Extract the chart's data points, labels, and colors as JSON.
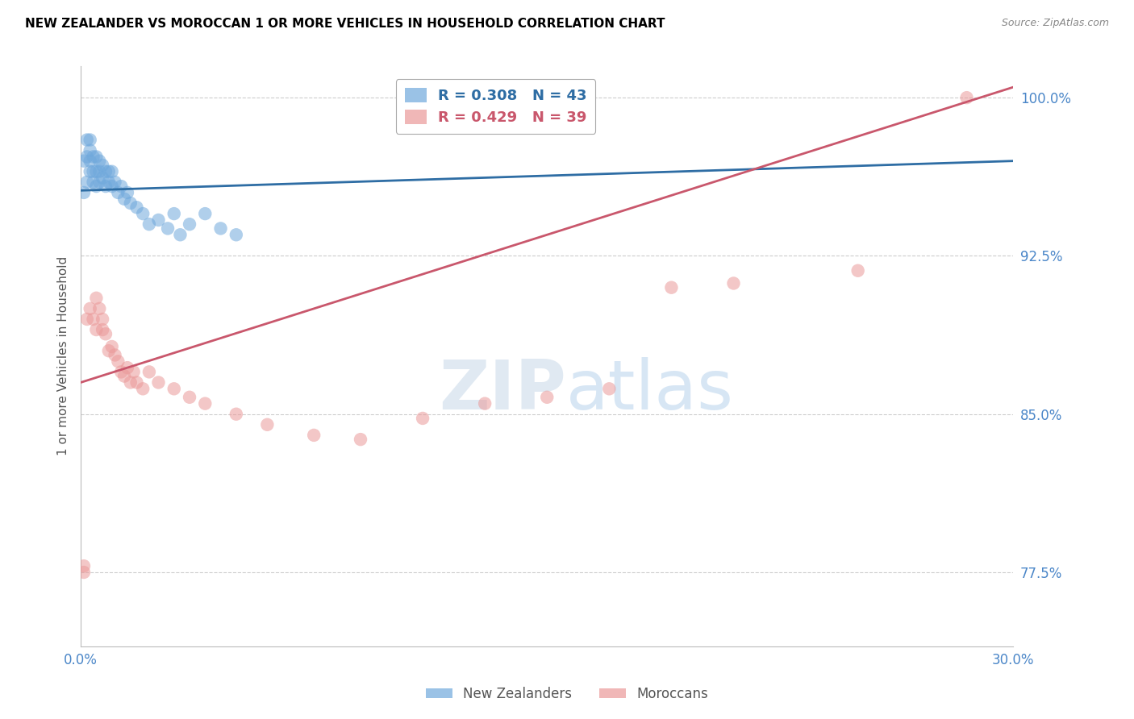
{
  "title": "NEW ZEALANDER VS MOROCCAN 1 OR MORE VEHICLES IN HOUSEHOLD CORRELATION CHART",
  "source": "Source: ZipAtlas.com",
  "ylabel": "1 or more Vehicles in Household",
  "xlabel": "",
  "xlim": [
    0.0,
    0.3
  ],
  "ylim": [
    0.74,
    1.015
  ],
  "yticks": [
    0.775,
    0.85,
    0.925,
    1.0
  ],
  "ytick_labels": [
    "77.5%",
    "85.0%",
    "92.5%",
    "100.0%"
  ],
  "xticks": [
    0.0,
    0.05,
    0.1,
    0.15,
    0.2,
    0.25,
    0.3
  ],
  "xtick_labels": [
    "0.0%",
    "",
    "",
    "",
    "",
    "",
    "30.0%"
  ],
  "nz_color": "#6fa8dc",
  "mor_color": "#ea9999",
  "nz_line_color": "#2e6da4",
  "mor_line_color": "#c9576c",
  "nz_R": 0.308,
  "nz_N": 43,
  "mor_R": 0.429,
  "mor_N": 39,
  "background_color": "#ffffff",
  "grid_color": "#cccccc",
  "watermark_zip": "ZIP",
  "watermark_atlas": "atlas",
  "axis_label_color": "#4a86c8",
  "title_color": "#000000",
  "nz_x": [
    0.001,
    0.001,
    0.002,
    0.002,
    0.002,
    0.003,
    0.003,
    0.003,
    0.003,
    0.004,
    0.004,
    0.004,
    0.005,
    0.005,
    0.005,
    0.006,
    0.006,
    0.006,
    0.007,
    0.007,
    0.008,
    0.008,
    0.009,
    0.009,
    0.01,
    0.01,
    0.011,
    0.012,
    0.013,
    0.014,
    0.015,
    0.016,
    0.018,
    0.02,
    0.022,
    0.025,
    0.028,
    0.03,
    0.032,
    0.035,
    0.04,
    0.045,
    0.05
  ],
  "nz_y": [
    0.955,
    0.97,
    0.96,
    0.972,
    0.98,
    0.965,
    0.97,
    0.975,
    0.98,
    0.96,
    0.965,
    0.972,
    0.958,
    0.965,
    0.972,
    0.96,
    0.965,
    0.97,
    0.962,
    0.968,
    0.958,
    0.965,
    0.96,
    0.965,
    0.958,
    0.965,
    0.96,
    0.955,
    0.958,
    0.952,
    0.955,
    0.95,
    0.948,
    0.945,
    0.94,
    0.942,
    0.938,
    0.945,
    0.935,
    0.94,
    0.945,
    0.938,
    0.935
  ],
  "mor_x": [
    0.001,
    0.001,
    0.002,
    0.003,
    0.004,
    0.005,
    0.005,
    0.006,
    0.007,
    0.007,
    0.008,
    0.009,
    0.01,
    0.011,
    0.012,
    0.013,
    0.014,
    0.015,
    0.016,
    0.017,
    0.018,
    0.02,
    0.022,
    0.025,
    0.03,
    0.035,
    0.04,
    0.05,
    0.06,
    0.075,
    0.09,
    0.11,
    0.13,
    0.15,
    0.17,
    0.19,
    0.21,
    0.25,
    0.285
  ],
  "mor_y": [
    0.775,
    0.778,
    0.895,
    0.9,
    0.895,
    0.905,
    0.89,
    0.9,
    0.89,
    0.895,
    0.888,
    0.88,
    0.882,
    0.878,
    0.875,
    0.87,
    0.868,
    0.872,
    0.865,
    0.87,
    0.865,
    0.862,
    0.87,
    0.865,
    0.862,
    0.858,
    0.855,
    0.85,
    0.845,
    0.84,
    0.838,
    0.848,
    0.855,
    0.858,
    0.862,
    0.91,
    0.912,
    0.918,
    1.0
  ]
}
